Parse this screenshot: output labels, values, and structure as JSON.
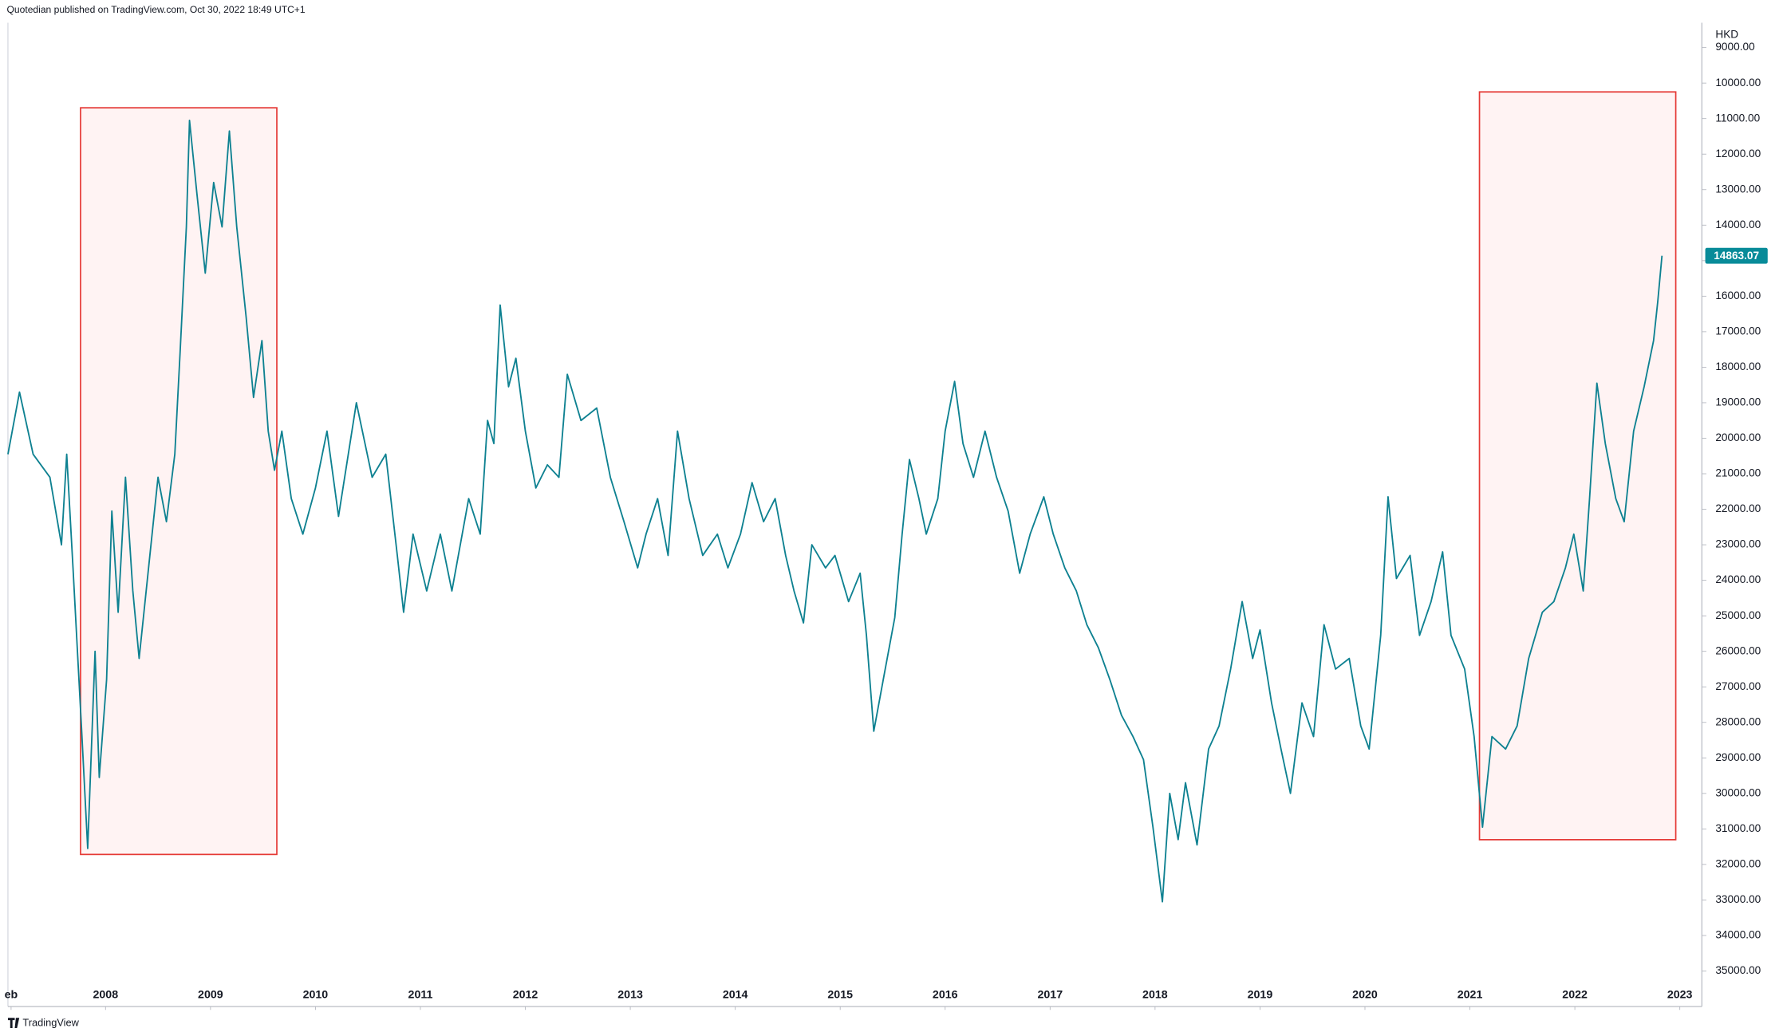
{
  "chart_data": {
    "type": "line",
    "header": "Quotedian published on TradingView.com, Oct 30, 2022 18:49 UTC+1",
    "currency": "HKD",
    "footer": "TradingView",
    "color": "#0e8191",
    "last_label_color": "#088b99",
    "xlim": [
      2007.07,
      2023.21
    ],
    "ylim": [
      36000,
      8300
    ],
    "xticks": [
      {
        "value": 2007.1,
        "label": "eb"
      },
      2008,
      2009,
      2010,
      2011,
      2012,
      2013,
      2014,
      2015,
      2016,
      2017,
      2018,
      2019,
      2020,
      2021,
      2022,
      2023
    ],
    "yticks": [
      {
        "value": 9000,
        "label": "9000.00"
      },
      {
        "value": 10000,
        "label": "10000.00"
      },
      {
        "value": 11000,
        "label": "11000.00"
      },
      {
        "value": 12000,
        "label": "12000.00"
      },
      {
        "value": 13000,
        "label": "13000.00"
      },
      {
        "value": 14000,
        "label": "14000.00"
      },
      {
        "value": 15000,
        "label": "15000.00"
      },
      {
        "value": 16000,
        "label": "16000.00"
      },
      {
        "value": 17000,
        "label": "17000.00"
      },
      {
        "value": 18000,
        "label": "18000.00"
      },
      {
        "value": 19000,
        "label": "19000.00"
      },
      {
        "value": 20000,
        "label": "20000.00"
      },
      {
        "value": 21000,
        "label": "21000.00"
      },
      {
        "value": 22000,
        "label": "22000.00"
      },
      {
        "value": 23000,
        "label": "23000.00"
      },
      {
        "value": 24000,
        "label": "24000.00"
      },
      {
        "value": 25000,
        "label": "25000.00"
      },
      {
        "value": 26000,
        "label": "26000.00"
      },
      {
        "value": 27000,
        "label": "27000.00"
      },
      {
        "value": 28000,
        "label": "28000.00"
      },
      {
        "value": 29000,
        "label": "29000.00"
      },
      {
        "value": 30000,
        "label": "30000.00"
      },
      {
        "value": 31000,
        "label": "31000.00"
      },
      {
        "value": 32000,
        "label": "32000.00"
      },
      {
        "value": 33000,
        "label": "33000.00"
      },
      {
        "value": 34000,
        "label": "34000.00"
      },
      {
        "value": 35000,
        "label": "35000.00"
      }
    ],
    "x": [
      2007.07,
      2007.18,
      2007.31,
      2007.47,
      2007.58,
      2007.63,
      2007.69,
      2007.77,
      2007.83,
      2007.9,
      2007.94,
      2008.01,
      2008.06,
      2008.12,
      2008.19,
      2008.26,
      2008.32,
      2008.41,
      2008.5,
      2008.58,
      2008.66,
      2008.71,
      2008.77,
      2008.8,
      2008.87,
      2008.95,
      2009.03,
      2009.11,
      2009.18,
      2009.25,
      2009.34,
      2009.41,
      2009.49,
      2009.55,
      2009.61,
      2009.68,
      2009.77,
      2009.88,
      2010.0,
      2010.11,
      2010.22,
      2010.39,
      2010.54,
      2010.67,
      2010.78,
      2010.84,
      2010.93,
      2011.06,
      2011.19,
      2011.3,
      2011.46,
      2011.57,
      2011.64,
      2011.7,
      2011.76,
      2011.84,
      2011.91,
      2012.0,
      2012.1,
      2012.21,
      2012.32,
      2012.4,
      2012.53,
      2012.68,
      2012.81,
      2012.94,
      2013.07,
      2013.15,
      2013.26,
      2013.36,
      2013.45,
      2013.56,
      2013.69,
      2013.83,
      2013.93,
      2014.05,
      2014.16,
      2014.27,
      2014.38,
      2014.48,
      2014.56,
      2014.65,
      2014.73,
      2014.86,
      2014.95,
      2015.08,
      2015.19,
      2015.25,
      2015.32,
      2015.41,
      2015.52,
      2015.59,
      2015.66,
      2015.75,
      2015.82,
      2015.93,
      2016.0,
      2016.09,
      2016.17,
      2016.27,
      2016.38,
      2016.49,
      2016.6,
      2016.71,
      2016.81,
      2016.94,
      2017.03,
      2017.14,
      2017.25,
      2017.35,
      2017.46,
      2017.57,
      2017.68,
      2017.79,
      2017.89,
      2017.98,
      2018.07,
      2018.14,
      2018.22,
      2018.29,
      2018.4,
      2018.51,
      2018.61,
      2018.72,
      2018.83,
      2018.93,
      2019.0,
      2019.11,
      2019.2,
      2019.29,
      2019.4,
      2019.51,
      2019.61,
      2019.72,
      2019.85,
      2019.96,
      2020.04,
      2020.15,
      2020.22,
      2020.3,
      2020.43,
      2020.52,
      2020.63,
      2020.74,
      2020.82,
      2020.95,
      2021.04,
      2021.12,
      2021.21,
      2021.34,
      2021.45,
      2021.56,
      2021.69,
      2021.8,
      2021.91,
      2021.99,
      2022.08,
      2022.14,
      2022.21,
      2022.29,
      2022.39,
      2022.47,
      2022.56,
      2022.66,
      2022.75,
      2022.79,
      2022.83
    ],
    "values": [
      20450,
      18700,
      20450,
      21100,
      23000,
      20450,
      23650,
      28100,
      31550,
      26000,
      29550,
      26800,
      22050,
      24900,
      21100,
      24300,
      26200,
      23650,
      21100,
      22350,
      20450,
      17600,
      14050,
      11050,
      13100,
      15350,
      12800,
      14050,
      11350,
      14050,
      16600,
      18850,
      17250,
      19800,
      20900,
      19800,
      21700,
      22700,
      21400,
      19800,
      22200,
      19000,
      21100,
      20450,
      23300,
      24900,
      22700,
      24300,
      22700,
      24300,
      21700,
      22700,
      19500,
      20150,
      16250,
      18550,
      17750,
      19800,
      21400,
      20750,
      21100,
      18200,
      19500,
      19150,
      21100,
      22350,
      23650,
      22700,
      21700,
      23300,
      19800,
      21700,
      23300,
      22700,
      23650,
      22700,
      21250,
      22350,
      21700,
      23300,
      24300,
      25200,
      23000,
      23650,
      23300,
      24600,
      23800,
      25550,
      28250,
      26800,
      25050,
      22700,
      20600,
      21700,
      22700,
      21700,
      19800,
      18400,
      20150,
      21100,
      19800,
      21100,
      22050,
      23800,
      22700,
      21650,
      22700,
      23650,
      24300,
      25250,
      25900,
      26800,
      27800,
      28400,
      29050,
      30950,
      33050,
      30000,
      31300,
      29700,
      31450,
      28750,
      28100,
      26500,
      24600,
      26200,
      25400,
      27450,
      28750,
      30000,
      27450,
      28400,
      25250,
      26500,
      26200,
      28100,
      28750,
      25550,
      21650,
      23950,
      23300,
      25550,
      24600,
      23200,
      25550,
      26500,
      28400,
      30950,
      28400,
      28750,
      28100,
      26200,
      24900,
      24600,
      23650,
      22700,
      24300,
      21700,
      18450,
      20150,
      21700,
      22350,
      19800,
      18550,
      17250,
      16150,
      14863.07
    ]
  }
}
